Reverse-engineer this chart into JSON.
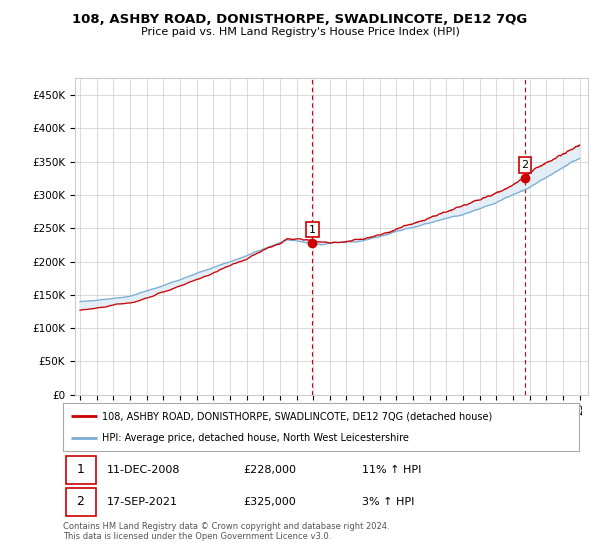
{
  "title": "108, ASHBY ROAD, DONISTHORPE, SWADLINCOTE, DE12 7QG",
  "subtitle": "Price paid vs. HM Land Registry's House Price Index (HPI)",
  "ylabel_ticks": [
    "£0",
    "£50K",
    "£100K",
    "£150K",
    "£200K",
    "£250K",
    "£300K",
    "£350K",
    "£400K",
    "£450K"
  ],
  "ylabel_values": [
    0,
    50000,
    100000,
    150000,
    200000,
    250000,
    300000,
    350000,
    400000,
    450000
  ],
  "ylim": [
    0,
    475000
  ],
  "legend_line1": "108, ASHBY ROAD, DONISTHORPE, SWADLINCOTE, DE12 7QG (detached house)",
  "legend_line2": "HPI: Average price, detached house, North West Leicestershire",
  "annotation1_label": "1",
  "annotation1_date": "11-DEC-2008",
  "annotation1_price": "£228,000",
  "annotation1_hpi": "11% ↑ HPI",
  "annotation2_label": "2",
  "annotation2_date": "17-SEP-2021",
  "annotation2_price": "£325,000",
  "annotation2_hpi": "3% ↑ HPI",
  "footer": "Contains HM Land Registry data © Crown copyright and database right 2024.\nThis data is licensed under the Open Government Licence v3.0.",
  "color_red": "#cc0000",
  "color_blue": "#7aadd4",
  "color_fill": "#deeaf4",
  "color_dashed": "#cc0000",
  "background_color": "#ffffff",
  "grid_color": "#cccccc",
  "sale1_year": 2008.95,
  "sale1_price": 228000,
  "sale2_year": 2021.72,
  "sale2_price": 325000,
  "start_year": 1995,
  "end_year": 2025
}
